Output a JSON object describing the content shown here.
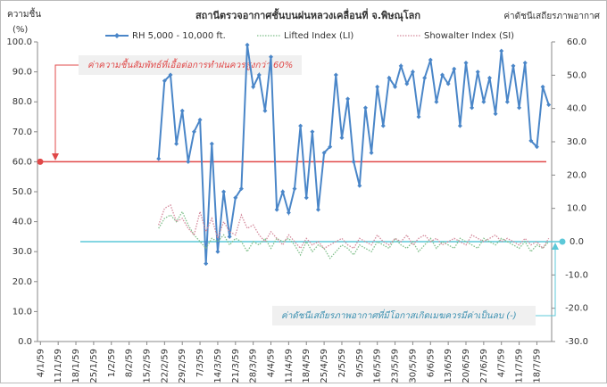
{
  "chart_data": {
    "type": "line",
    "title": "สถานีตรวจอากาศชั้นบนฝนหลวงเคลื่อนที่  จ.พิษณุโลก",
    "y_label": [
      "ความชื้น",
      "(%)"
    ],
    "y2_label": "ค่าดัชนีเสถียรภาพอากาศ",
    "categories": [
      "4/1/59",
      null,
      null,
      "11/1/59",
      null,
      null,
      "18/1/59",
      null,
      null,
      "25/1/59",
      null,
      null,
      "1/2/59",
      null,
      null,
      "8/2/59",
      null,
      null,
      "15/2/59",
      null,
      null,
      "22/2/59",
      null,
      null,
      "29/2/59",
      null,
      null,
      "7/3/59",
      null,
      null,
      "14/3/59",
      null,
      null,
      "21/3/59",
      null,
      null,
      "28/3/59",
      null,
      null,
      "4/4/59",
      null,
      null,
      "11/4/59",
      null,
      null,
      "18/4/59",
      null,
      null,
      "25/4/59",
      null,
      null,
      "2/5/59",
      null,
      null,
      "9/5/59",
      null,
      null,
      "16/5/59",
      null,
      null,
      "23/5/59",
      null,
      null,
      "30/5/59",
      null,
      null,
      "6/6/59",
      null,
      null,
      "13/6/59",
      null,
      null,
      "20/6/59",
      null,
      null,
      "27/6/59",
      null,
      null,
      "4/7/59",
      null,
      null,
      "11/7/59",
      null,
      null,
      "18/7/59",
      null,
      null
    ],
    "series": [
      {
        "name": "RH 5,000 - 10,000 ft.",
        "color": "#4a86c8",
        "style": "solid",
        "marker": true,
        "values": [
          null,
          null,
          null,
          null,
          null,
          null,
          null,
          null,
          null,
          null,
          null,
          null,
          null,
          null,
          null,
          null,
          null,
          null,
          null,
          null,
          61,
          87,
          89,
          66,
          77,
          60,
          70,
          74,
          26,
          66,
          30,
          50,
          35,
          48,
          51,
          99,
          85,
          89,
          77,
          95,
          44,
          50,
          43,
          51,
          72,
          48,
          70,
          44,
          63,
          65,
          89,
          68,
          81,
          60,
          52,
          78,
          63,
          85,
          72,
          88,
          85,
          92,
          86,
          90,
          75,
          88,
          94,
          80,
          89,
          86,
          91,
          72,
          93,
          78,
          90,
          80,
          88,
          76,
          97,
          80,
          92,
          78,
          93,
          67,
          65,
          85,
          79
        ]
      },
      {
        "name": "Lifted Index (LI)",
        "color": "#7fbf8a",
        "style": "dotted",
        "axis": "y2",
        "values": [
          null,
          null,
          null,
          null,
          null,
          null,
          null,
          null,
          null,
          null,
          null,
          null,
          null,
          null,
          null,
          null,
          null,
          null,
          null,
          null,
          4,
          7,
          8,
          6,
          9,
          5,
          2,
          0,
          -2,
          1,
          0,
          2,
          -1,
          1,
          0,
          -3,
          0,
          -1,
          1,
          -2,
          1,
          0,
          1,
          -1,
          -4,
          0,
          -3,
          -1,
          -2,
          -5,
          -3,
          -1,
          -2,
          -4,
          -1,
          -2,
          -3,
          0,
          -1,
          -2,
          1,
          -1,
          -2,
          0,
          -3,
          -1,
          1,
          -2,
          0,
          -1,
          -2,
          1,
          0,
          -1,
          -2,
          1,
          0,
          -1,
          1,
          0,
          -1,
          -2,
          0,
          -3,
          -1,
          -2,
          0
        ]
      },
      {
        "name": "Showalter Index (SI)",
        "color": "#d48a9c",
        "style": "dotted",
        "axis": "y2",
        "values": [
          null,
          null,
          null,
          null,
          null,
          null,
          null,
          null,
          null,
          null,
          null,
          null,
          null,
          null,
          null,
          null,
          null,
          null,
          null,
          null,
          5,
          10,
          11,
          6,
          7,
          4,
          2,
          9,
          3,
          7,
          1,
          6,
          3,
          2,
          8,
          4,
          5,
          2,
          0,
          3,
          1,
          -1,
          2,
          0,
          -2,
          1,
          -1,
          0,
          -2,
          -1,
          0,
          1,
          -1,
          -2,
          1,
          0,
          -1,
          2,
          0,
          -1,
          1,
          0,
          2,
          -1,
          1,
          2,
          0,
          1,
          -1,
          0,
          1,
          0,
          -1,
          2,
          1,
          0,
          1,
          2,
          0,
          1,
          0,
          -1,
          1,
          -1,
          0,
          -2,
          1
        ]
      }
    ],
    "ylim": [
      0,
      100
    ],
    "yticks": [
      {
        "value": 0,
        "label": "0.0"
      },
      {
        "value": 10,
        "label": "10.0"
      },
      {
        "value": 20,
        "label": "20.0"
      },
      {
        "value": 30,
        "label": "30.0"
      },
      {
        "value": 40,
        "label": "40.0"
      },
      {
        "value": 50,
        "label": "50.0"
      },
      {
        "value": 60,
        "label": "60.0"
      },
      {
        "value": 70,
        "label": "70.0"
      },
      {
        "value": 80,
        "label": "80.0"
      },
      {
        "value": 90,
        "label": "90.0"
      },
      {
        "value": 100,
        "label": "100.0"
      }
    ],
    "y2lim": [
      -30,
      60
    ],
    "y2ticks": [
      {
        "value": -30,
        "label": "-30.0"
      },
      {
        "value": -20,
        "label": "-20.0"
      },
      {
        "value": -10,
        "label": "-10.0"
      },
      {
        "value": 0,
        "label": "0.0"
      },
      {
        "value": 10,
        "label": "10.0"
      },
      {
        "value": 20,
        "label": "20.0"
      },
      {
        "value": 30,
        "label": "30.0"
      },
      {
        "value": 40,
        "label": "40.0"
      },
      {
        "value": 50,
        "label": "50.0"
      },
      {
        "value": 60,
        "label": "60.0"
      }
    ],
    "grid": false,
    "reference_lines": [
      {
        "value": 60,
        "axis": "y",
        "color": "#e04848",
        "annotation": "ค่าความชื้นสัมพัทธ์ที่เอื้อต่อการทำฝนควรสูงกว่า 60%"
      },
      {
        "value": 0,
        "axis": "y2",
        "color": "#5cc8d8",
        "annotation": "ค่าดัชนีเสถียรภาพอากาศที่มีโอกาสเกิดเมฆควรมีค่าเป็นลบ (-)"
      }
    ]
  }
}
